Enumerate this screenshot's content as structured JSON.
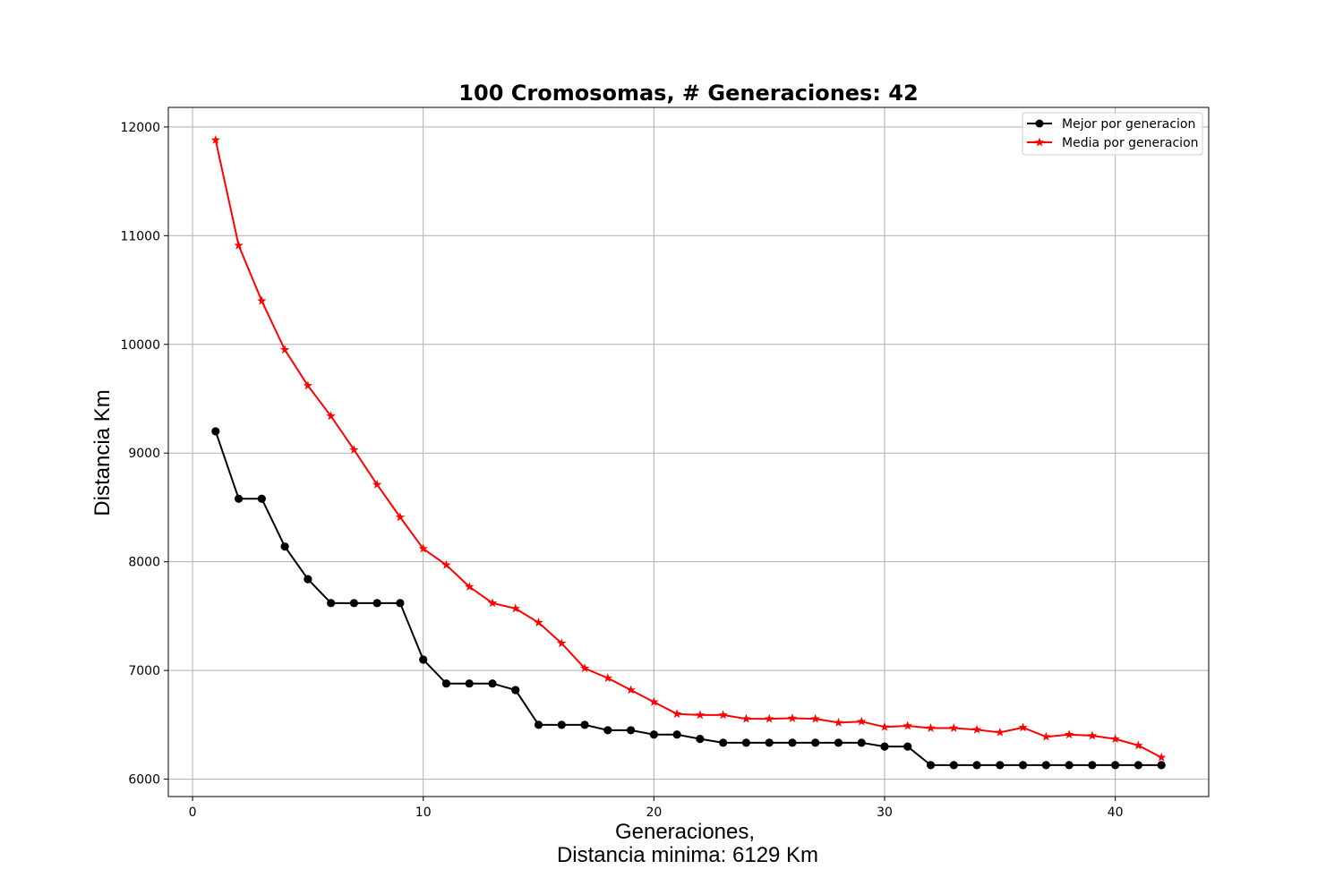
{
  "chart_data": {
    "type": "line",
    "title": "100 Cromosomas, # Generaciones: 42",
    "xlabel_line1": "Generaciones,",
    "xlabel_line2": "Distancia minima: 6129 Km",
    "ylabel": "Distancia Km",
    "xlim": [
      -1.05,
      44.05
    ],
    "ylim": [
      5840,
      12180
    ],
    "xticks": [
      0,
      10,
      20,
      30,
      40
    ],
    "yticks": [
      6000,
      7000,
      8000,
      9000,
      10000,
      11000,
      12000
    ],
    "grid": true,
    "legend_position": "top-right",
    "x": [
      1,
      2,
      3,
      4,
      5,
      6,
      7,
      8,
      9,
      10,
      11,
      12,
      13,
      14,
      15,
      16,
      17,
      18,
      19,
      20,
      21,
      22,
      23,
      24,
      25,
      26,
      27,
      28,
      29,
      30,
      31,
      32,
      33,
      34,
      35,
      36,
      37,
      38,
      39,
      40,
      41,
      42
    ],
    "series": [
      {
        "name": "Mejor por generacion",
        "color": "#000000",
        "marker": "circle",
        "values": [
          9200,
          8580,
          8580,
          8140,
          7840,
          7620,
          7620,
          7620,
          7620,
          7100,
          6880,
          6880,
          6880,
          6820,
          6500,
          6500,
          6500,
          6450,
          6450,
          6410,
          6410,
          6370,
          6335,
          6335,
          6335,
          6335,
          6335,
          6335,
          6335,
          6300,
          6300,
          6129,
          6129,
          6129,
          6129,
          6129,
          6129,
          6129,
          6129,
          6129,
          6129,
          6129
        ]
      },
      {
        "name": "Media por generacion",
        "color": "#ff0000",
        "marker": "star",
        "values": [
          11880,
          10910,
          10400,
          9950,
          9620,
          9340,
          9030,
          8710,
          8410,
          8120,
          7970,
          7770,
          7620,
          7570,
          7440,
          7250,
          7020,
          6930,
          6820,
          6710,
          6600,
          6590,
          6590,
          6555,
          6555,
          6560,
          6555,
          6520,
          6530,
          6480,
          6490,
          6470,
          6470,
          6455,
          6430,
          6475,
          6390,
          6410,
          6400,
          6370,
          6310,
          6200
        ]
      }
    ]
  }
}
